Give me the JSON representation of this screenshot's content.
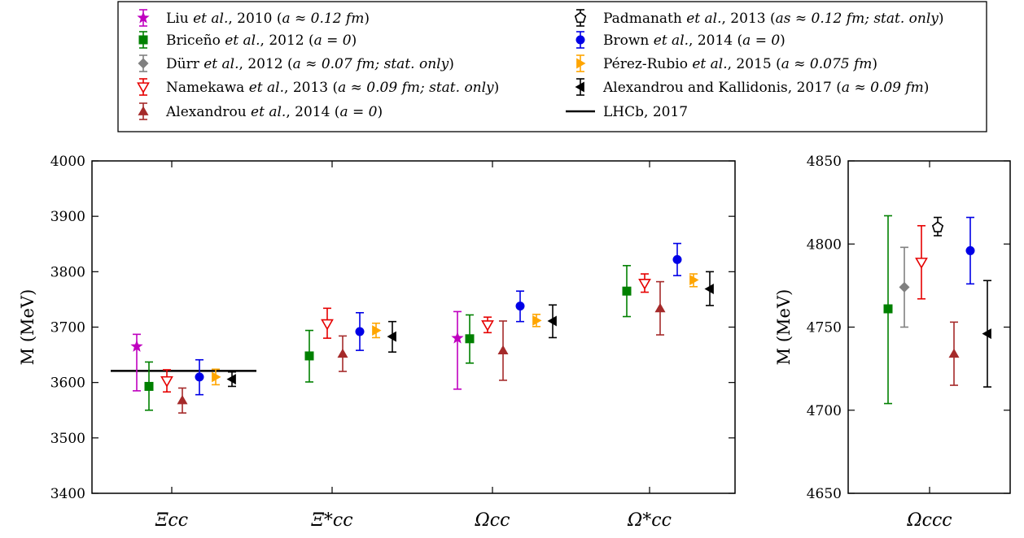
{
  "chart_data": [
    {
      "type": "scatter",
      "name_label": "main-panel",
      "ylabel": "M  (MeV)",
      "ylim": [
        3400,
        4000
      ],
      "yticks": [
        3400,
        3500,
        3600,
        3700,
        3800,
        3900,
        4000
      ],
      "categories": [
        "Ξcc",
        "Ξ*cc",
        "Ωcc",
        "Ω*cc"
      ],
      "reference_line": {
        "label": "LHCb, 2017",
        "category": "Ξcc",
        "value": 3621
      },
      "series": [
        {
          "id": "liu",
          "name": "Liu et al., 2010 (a ≈ 0.12 fm)",
          "color": "#bf00bf",
          "marker": "star",
          "points": [
            {
              "cat": "Ξcc",
              "y": 3665,
              "lo": 3585,
              "hi": 3687
            },
            {
              "cat": "Ωcc",
              "y": 3680,
              "lo": 3588,
              "hi": 3728
            }
          ]
        },
        {
          "id": "briceno",
          "name": "Briceño et al., 2012 (a = 0)",
          "color": "#008000",
          "marker": "square",
          "points": [
            {
              "cat": "Ξcc",
              "y": 3593,
              "lo": 3550,
              "hi": 3637
            },
            {
              "cat": "Ξ*cc",
              "y": 3648,
              "lo": 3601,
              "hi": 3694
            },
            {
              "cat": "Ωcc",
              "y": 3679,
              "lo": 3635,
              "hi": 3722
            },
            {
              "cat": "Ω*cc",
              "y": 3765,
              "lo": 3719,
              "hi": 3811
            }
          ]
        },
        {
          "id": "namekawa",
          "name": "Namekawa et al., 2013 (a ≈ 0.09 fm; stat. only)",
          "color": "#e60000",
          "marker": "triangle-down-open",
          "points": [
            {
              "cat": "Ξcc",
              "y": 3603,
              "lo": 3583,
              "hi": 3623
            },
            {
              "cat": "Ξ*cc",
              "y": 3706,
              "lo": 3680,
              "hi": 3734
            },
            {
              "cat": "Ωcc",
              "y": 3704,
              "lo": 3690,
              "hi": 3718
            },
            {
              "cat": "Ω*cc",
              "y": 3779,
              "lo": 3763,
              "hi": 3796
            }
          ]
        },
        {
          "id": "alexandrou2014",
          "name": "Alexandrou et al., 2014 (a = 0)",
          "color": "#a52a2a",
          "marker": "triangle-up",
          "points": [
            {
              "cat": "Ξcc",
              "y": 3568,
              "lo": 3545,
              "hi": 3590
            },
            {
              "cat": "Ξ*cc",
              "y": 3652,
              "lo": 3620,
              "hi": 3684
            },
            {
              "cat": "Ωcc",
              "y": 3658,
              "lo": 3604,
              "hi": 3711
            },
            {
              "cat": "Ω*cc",
              "y": 3734,
              "lo": 3686,
              "hi": 3782
            }
          ]
        },
        {
          "id": "brown",
          "name": "Brown et al., 2014 (a = 0)",
          "color": "#0000e6",
          "marker": "circle",
          "points": [
            {
              "cat": "Ξcc",
              "y": 3610,
              "lo": 3578,
              "hi": 3641
            },
            {
              "cat": "Ξ*cc",
              "y": 3692,
              "lo": 3658,
              "hi": 3726
            },
            {
              "cat": "Ωcc",
              "y": 3738,
              "lo": 3710,
              "hi": 3765
            },
            {
              "cat": "Ω*cc",
              "y": 3822,
              "lo": 3793,
              "hi": 3851
            }
          ]
        },
        {
          "id": "perez",
          "name": "Pérez-Rubio et al., 2015 (a ≈ 0.075 fm)",
          "color": "#ffa500",
          "marker": "triangle-right",
          "points": [
            {
              "cat": "Ξcc",
              "y": 3610,
              "lo": 3596,
              "hi": 3624
            },
            {
              "cat": "Ξ*cc",
              "y": 3694,
              "lo": 3681,
              "hi": 3707
            },
            {
              "cat": "Ωcc",
              "y": 3712,
              "lo": 3701,
              "hi": 3723
            },
            {
              "cat": "Ω*cc",
              "y": 3785,
              "lo": 3773,
              "hi": 3796
            }
          ]
        },
        {
          "id": "alexkall",
          "name": "Alexandrou and Kallidonis, 2017 (a ≈ 0.09 fm)",
          "color": "#000000",
          "marker": "triangle-left",
          "points": [
            {
              "cat": "Ξcc",
              "y": 3606,
              "lo": 3593,
              "hi": 3619
            },
            {
              "cat": "Ξ*cc",
              "y": 3683,
              "lo": 3655,
              "hi": 3710
            },
            {
              "cat": "Ωcc",
              "y": 3711,
              "lo": 3681,
              "hi": 3740
            },
            {
              "cat": "Ω*cc",
              "y": 3769,
              "lo": 3739,
              "hi": 3800
            }
          ]
        }
      ]
    },
    {
      "type": "scatter",
      "name_label": "omega-ccc-panel",
      "ylabel": "M  (MeV)",
      "ylim": [
        4650,
        4850
      ],
      "yticks": [
        4650,
        4700,
        4750,
        4800,
        4850
      ],
      "categories": [
        "Ωccc"
      ],
      "series": [
        {
          "id": "briceno",
          "color": "#008000",
          "marker": "square",
          "points": [
            {
              "cat": "Ωccc",
              "y": 4761,
              "lo": 4704,
              "hi": 4817
            }
          ]
        },
        {
          "id": "durr",
          "name": "Dürr et al., 2012 (a ≈ 0.07 fm; stat. only)",
          "color": "#808080",
          "marker": "diamond",
          "points": [
            {
              "cat": "Ωccc",
              "y": 4774,
              "lo": 4750,
              "hi": 4798
            }
          ]
        },
        {
          "id": "namekawa",
          "color": "#e60000",
          "marker": "triangle-down-open",
          "points": [
            {
              "cat": "Ωccc",
              "y": 4789,
              "lo": 4767,
              "hi": 4811
            }
          ]
        },
        {
          "id": "padmanath",
          "name": "Padmanath et al., 2013 (as ≈ 0.12 fm; stat. only)",
          "color": "#000000",
          "marker": "pentagon-open",
          "points": [
            {
              "cat": "Ωccc",
              "y": 4810,
              "lo": 4805,
              "hi": 4816
            }
          ]
        },
        {
          "id": "alexandrou2014",
          "color": "#a52a2a",
          "marker": "triangle-up",
          "points": [
            {
              "cat": "Ωccc",
              "y": 4734,
              "lo": 4715,
              "hi": 4753
            }
          ]
        },
        {
          "id": "brown",
          "color": "#0000e6",
          "marker": "circle",
          "points": [
            {
              "cat": "Ωccc",
              "y": 4796,
              "lo": 4776,
              "hi": 4816
            }
          ]
        },
        {
          "id": "alexkall",
          "color": "#000000",
          "marker": "triangle-left",
          "points": [
            {
              "cat": "Ωccc",
              "y": 4746,
              "lo": 4714,
              "hi": 4778
            }
          ]
        }
      ]
    }
  ],
  "legend": {
    "placement": "top",
    "left_column": [
      {
        "marker": "star",
        "color": "#bf00bf",
        "author": "Liu",
        "etal": true,
        "rest": ", 2010 (",
        "cond": "a ≈ 0.12 fm",
        "tail": ")"
      },
      {
        "marker": "square",
        "color": "#008000",
        "author": "Briceño",
        "etal": true,
        "rest": ", 2012 (",
        "cond": "a = 0",
        "tail": ")"
      },
      {
        "marker": "diamond",
        "color": "#808080",
        "author": "Dürr",
        "etal": true,
        "rest": ", 2012 (",
        "cond": "a ≈ 0.07 fm; stat. only",
        "tail": ")"
      },
      {
        "marker": "triangle-down-open",
        "color": "#e60000",
        "author": "Namekawa",
        "etal": true,
        "rest": ", 2013 (",
        "cond": "a ≈ 0.09 fm; stat. only",
        "tail": ")"
      },
      {
        "marker": "triangle-up",
        "color": "#a52a2a",
        "author": "Alexandrou",
        "etal": true,
        "rest": ", 2014 (",
        "cond": "a = 0",
        "tail": ")"
      }
    ],
    "right_column": [
      {
        "marker": "pentagon-open",
        "color": "#000000",
        "author": "Padmanath",
        "etal": true,
        "rest": ", 2013 (",
        "cond": "as ≈ 0.12 fm; stat. only",
        "tail": ")"
      },
      {
        "marker": "circle",
        "color": "#0000e6",
        "author": "Brown",
        "etal": true,
        "rest": ", 2014 (",
        "cond": "a = 0",
        "tail": ")"
      },
      {
        "marker": "triangle-right",
        "color": "#ffa500",
        "author": "Pérez-Rubio",
        "etal": true,
        "rest": ", 2015 (",
        "cond": "a ≈ 0.075 fm",
        "tail": ")"
      },
      {
        "marker": "triangle-left",
        "color": "#000000",
        "author": "Alexandrou and Kallidonis",
        "etal": false,
        "rest": ", 2017 (",
        "cond": "a ≈ 0.09 fm",
        "tail": ")"
      },
      {
        "marker": "line",
        "color": "#000000",
        "author": "LHCb",
        "etal": false,
        "rest": ", 2017",
        "cond": "",
        "tail": ""
      }
    ],
    "etal_text": " et al."
  }
}
